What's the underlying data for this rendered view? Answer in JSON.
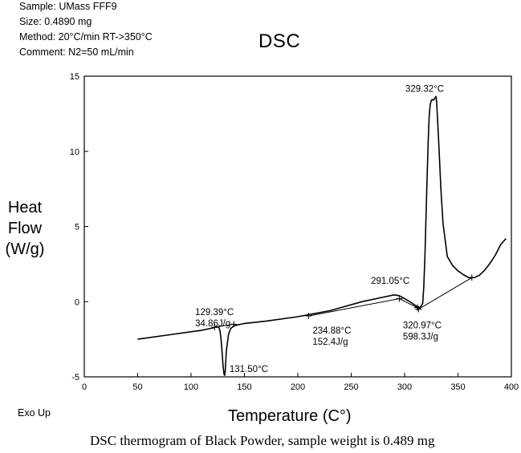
{
  "header": {
    "sample": "Sample: UMass FFF9",
    "size": "Size: 0.4890 mg",
    "method": "Method: 20°C/min RT->350°C",
    "comment": "Comment: N2=50 mL/min"
  },
  "exo_label": "Exo Up",
  "caption": "DSC thermogram of Black Powder, sample weight is 0.489 mg",
  "chart_data": {
    "type": "line",
    "title": "DSC",
    "xlabel": "Temperature (C°)",
    "ylabel": [
      "Heat",
      "Flow",
      "(W/g)"
    ],
    "xlim": [
      0,
      400
    ],
    "ylim": [
      -5,
      15
    ],
    "xticks": [
      "0",
      "50",
      "100",
      "150",
      "200",
      "250",
      "300",
      "350",
      "400"
    ],
    "yticks": [
      "-5",
      "0",
      "5",
      "10",
      "15"
    ],
    "series": [
      {
        "x": [
          50,
          80,
          110,
          120,
          124,
          126,
          127,
          128,
          129,
          130,
          131,
          131.5,
          132,
          133,
          135,
          137,
          140,
          150,
          170,
          200,
          230,
          260,
          280,
          290,
          295,
          300,
          305,
          310,
          313,
          315,
          317,
          318,
          319,
          320,
          321,
          322,
          323,
          324,
          325,
          326,
          327,
          328,
          329,
          329.3,
          330,
          331,
          332,
          334,
          336,
          340,
          345,
          350,
          355,
          360,
          365,
          370,
          375,
          380,
          385,
          390,
          395
        ],
        "y": [
          -2.5,
          -2.2,
          -1.9,
          -1.75,
          -1.68,
          -1.7,
          -1.9,
          -2.4,
          -3.3,
          -4.3,
          -4.85,
          -4.9,
          -4.6,
          -3.3,
          -2.2,
          -1.8,
          -1.6,
          -1.45,
          -1.3,
          -1.0,
          -0.6,
          0.0,
          0.3,
          0.45,
          0.4,
          0.2,
          0.0,
          -0.25,
          -0.4,
          -0.35,
          -0.1,
          1.0,
          3.0,
          5.5,
          8.0,
          10.5,
          12.3,
          13.1,
          13.4,
          13.45,
          13.4,
          13.5,
          13.6,
          13.65,
          13.3,
          12.0,
          10.5,
          7.5,
          5.2,
          3.0,
          2.4,
          2.05,
          1.8,
          1.6,
          1.6,
          1.75,
          2.1,
          2.55,
          3.1,
          3.8,
          4.2
        ]
      }
    ],
    "baselines": [
      {
        "x": [
          122,
          140
        ],
        "y": [
          -1.7,
          -1.5
        ]
      },
      {
        "x": [
          210,
          295,
          312
        ],
        "y": [
          -0.95,
          0.2,
          -0.4
        ]
      },
      {
        "x": [
          313,
          363
        ],
        "y": [
          -0.5,
          1.6
        ]
      }
    ],
    "annotations": [
      {
        "x": 129.39,
        "y": -1.65,
        "lines": [
          "129.39°C",
          "34.86J/g"
        ]
      },
      {
        "x": 131.5,
        "y": -4.9,
        "lines": [
          "131.50°C"
        ]
      },
      {
        "x": 234.88,
        "y": -0.85,
        "lines": [
          "234.88°C",
          "152.4J/g"
        ]
      },
      {
        "x": 291.05,
        "y": 0.45,
        "lines": [
          "291.05°C"
        ]
      },
      {
        "x": 320.97,
        "y": -0.5,
        "lines": [
          "320.97°C",
          "598.3J/g"
        ]
      },
      {
        "x": 329.32,
        "y": 13.65,
        "lines": [
          "329.32°C"
        ]
      }
    ]
  }
}
